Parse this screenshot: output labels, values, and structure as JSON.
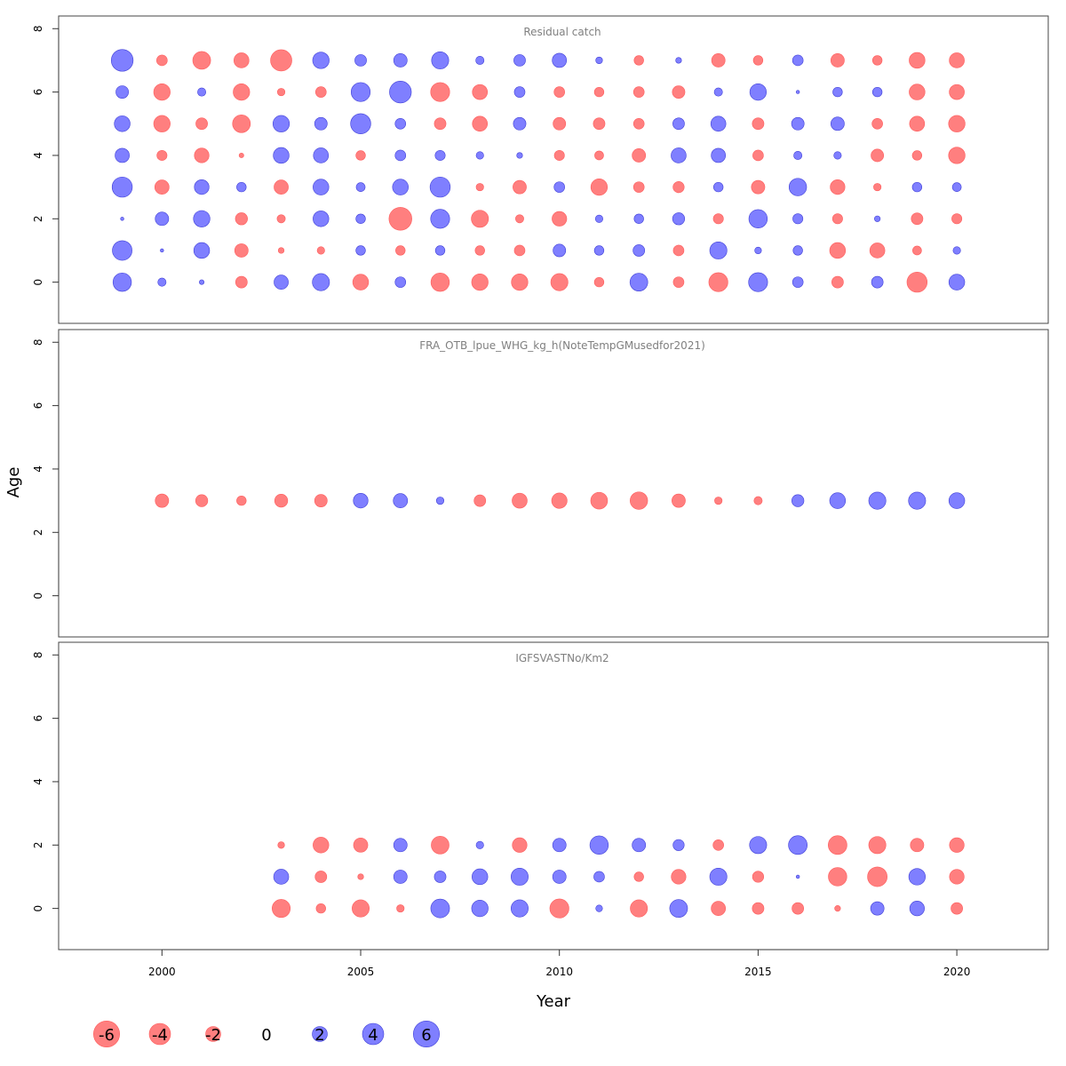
{
  "chart_data": {
    "type": "scatter",
    "subtype": "bubble-residuals",
    "xlabel": "Year",
    "ylabel": "Age",
    "x_ticks": [
      2000,
      2005,
      2010,
      2015,
      2020
    ],
    "y_ticks": [
      0,
      2,
      4,
      6,
      8
    ],
    "xlim": [
      1997.4,
      2022.3
    ],
    "ylim": [
      -1.3,
      8.4
    ],
    "colors": {
      "negative": "#FF7F7F",
      "positive": "#7F7FFF"
    },
    "legend": {
      "placement": "bottom-left",
      "values": [
        -6,
        -4,
        -2,
        0,
        2,
        4,
        6
      ],
      "labels": [
        "-6",
        "-4",
        "-2",
        "0",
        "2",
        "4",
        "6"
      ]
    },
    "panels": [
      {
        "title": "Residual catch",
        "years": [
          1999,
          2000,
          2001,
          2002,
          2003,
          2004,
          2005,
          2006,
          2007,
          2008,
          2009,
          2010,
          2011,
          2012,
          2013,
          2014,
          2015,
          2016,
          2017,
          2018,
          2019,
          2020
        ],
        "ages": [
          7,
          6,
          5,
          4,
          3,
          2,
          1,
          0
        ],
        "residuals": [
          [
            4.2,
            -1.0,
            -2.8,
            -2.0,
            -4.0,
            2.4,
            1.2,
            1.6,
            2.6,
            0.6,
            1.2,
            1.8,
            0.4,
            -0.8,
            0.3,
            -1.6,
            -0.8,
            1.0,
            -1.6,
            -0.8,
            -2.2,
            -2.0
          ],
          [
            1.4,
            -2.4,
            0.6,
            -2.4,
            -0.5,
            -1.0,
            3.2,
            4.2,
            -3.2,
            -2.0,
            1.0,
            -1.0,
            -0.8,
            -1.0,
            -1.4,
            0.6,
            2.4,
            0.1,
            0.8,
            0.8,
            -2.2,
            -2.0
          ],
          [
            2.2,
            -2.4,
            -1.2,
            -2.8,
            2.4,
            1.4,
            3.6,
            1.0,
            -1.2,
            -2.0,
            1.4,
            -1.4,
            -1.2,
            -1.0,
            1.2,
            2.0,
            -1.2,
            1.4,
            1.6,
            -1.0,
            -2.0,
            -2.4
          ],
          [
            1.8,
            -0.9,
            -1.9,
            -0.2,
            2.2,
            2.0,
            -0.8,
            1.0,
            0.9,
            0.5,
            0.3,
            -0.9,
            -0.7,
            -1.6,
            2.0,
            1.8,
            -1.0,
            0.6,
            0.5,
            -1.4,
            -0.8,
            -2.4
          ],
          [
            3.6,
            -1.8,
            1.9,
            0.8,
            -1.8,
            2.2,
            0.7,
            2.2,
            3.6,
            -0.5,
            -1.6,
            1.0,
            -2.4,
            -1.0,
            -1.1,
            0.8,
            -1.6,
            2.7,
            -1.9,
            -0.5,
            0.8,
            0.7
          ],
          [
            0.1,
            1.6,
            2.4,
            -1.3,
            -0.6,
            2.2,
            0.8,
            -4.6,
            3.2,
            -2.6,
            -0.6,
            -1.9,
            0.5,
            0.8,
            1.3,
            -0.9,
            3.0,
            0.9,
            -0.9,
            0.3,
            -1.2,
            -0.9
          ],
          [
            3.4,
            0.1,
            2.2,
            -1.6,
            -0.3,
            -0.5,
            0.8,
            -0.8,
            0.8,
            -0.8,
            -1.0,
            1.4,
            0.8,
            1.2,
            -1.0,
            2.6,
            0.4,
            0.8,
            -2.2,
            -2.0,
            -0.7,
            0.5
          ],
          [
            3.0,
            0.6,
            0.2,
            -1.2,
            1.8,
            2.6,
            -2.2,
            1.0,
            -3.0,
            -2.4,
            -2.4,
            -2.6,
            -0.8,
            2.8,
            -1.0,
            -3.2,
            3.2,
            1.0,
            -1.2,
            1.2,
            -3.6,
            2.2
          ]
        ]
      },
      {
        "title": "FRA_OTB_lpue_WHG_kg_h(NoteTempGMusedfor2021)",
        "years": [
          2000,
          2001,
          2002,
          2003,
          2004,
          2005,
          2006,
          2007,
          2008,
          2009,
          2010,
          2011,
          2012,
          2013,
          2014,
          2015,
          2016,
          2017,
          2018,
          2019,
          2020
        ],
        "ages": [
          3
        ],
        "residuals": [
          [
            -1.6,
            -1.3,
            -0.8,
            -1.5,
            -1.4,
            1.9,
            1.8,
            0.5,
            -1.2,
            -2.0,
            -2.1,
            -2.5,
            -2.7,
            -1.6,
            -0.5,
            -0.6,
            1.3,
            2.2,
            2.6,
            2.6,
            2.2
          ]
        ]
      },
      {
        "title": "IGFSVASTNo/Km2",
        "years": [
          2003,
          2004,
          2005,
          2006,
          2007,
          2008,
          2009,
          2010,
          2011,
          2012,
          2013,
          2014,
          2015,
          2016,
          2017,
          2018,
          2019,
          2020
        ],
        "ages": [
          2,
          1,
          0
        ],
        "residuals": [
          [
            -0.4,
            -2.2,
            -1.8,
            1.6,
            -2.8,
            0.5,
            -1.9,
            1.6,
            3.0,
            1.6,
            1.1,
            -1.0,
            2.6,
            3.1,
            -3.1,
            -2.6,
            -1.6,
            -1.9
          ],
          [
            2.0,
            -1.2,
            -0.3,
            1.6,
            1.2,
            2.2,
            2.6,
            1.6,
            1.0,
            -0.8,
            -1.9,
            2.6,
            -1.1,
            0.1,
            -3.0,
            -3.4,
            2.4,
            -1.9
          ],
          [
            -2.9,
            -0.8,
            -2.6,
            -0.5,
            3.1,
            2.4,
            2.6,
            -3.2,
            0.4,
            -2.6,
            2.8,
            -1.8,
            -1.2,
            -1.2,
            -0.3,
            1.6,
            1.9,
            -1.2
          ]
        ]
      }
    ]
  }
}
